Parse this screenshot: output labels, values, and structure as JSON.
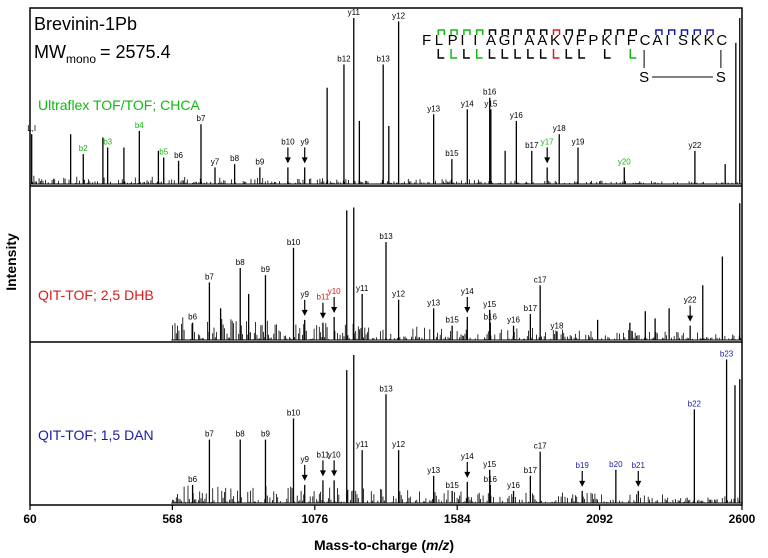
{
  "colors": {
    "green": "#12b812",
    "red": "#d91a1a",
    "blue": "#1a1aa8",
    "black": "#000000"
  },
  "chart_data": {
    "type": "spectrum",
    "title": "Brevinin-1Pb",
    "mw_label": "MW",
    "mw_sub": "mono",
    "mw_value": "= 2575.4",
    "xlabel": "Mass-to-charge (m/z)",
    "xlabel_main": "Mass-to-charge (",
    "xlabel_italic": "m/z",
    "xlabel_end": ")",
    "ylabel": "Intensity",
    "xlim": [
      60,
      2600
    ],
    "xticks": [
      "60",
      "568",
      "1076",
      "1584",
      "2092",
      "2600"
    ],
    "sequence": {
      "residues": [
        "F",
        "L",
        "P",
        "I",
        "I",
        "A",
        "G",
        "I",
        "A",
        "A",
        "K",
        "V",
        "F",
        "P",
        "K",
        "I",
        "F",
        "C",
        "A",
        "I",
        "S",
        "K",
        "K",
        "C"
      ],
      "top_marks": [
        {
          "pos": 2,
          "color": "green"
        },
        {
          "pos": 3,
          "color": "green"
        },
        {
          "pos": 4,
          "color": "green"
        },
        {
          "pos": 5,
          "color": "green"
        },
        {
          "pos": 6,
          "color": "black"
        },
        {
          "pos": 7,
          "color": "black"
        },
        {
          "pos": 8,
          "color": "black"
        },
        {
          "pos": 9,
          "color": "black"
        },
        {
          "pos": 10,
          "color": "black"
        },
        {
          "pos": 11,
          "color": "red"
        },
        {
          "pos": 12,
          "color": "black"
        },
        {
          "pos": 13,
          "color": "black"
        },
        {
          "pos": 15,
          "color": "black"
        },
        {
          "pos": 16,
          "color": "black"
        },
        {
          "pos": 17,
          "color": "black"
        },
        {
          "pos": 19,
          "color": "blue"
        },
        {
          "pos": 20,
          "color": "blue"
        },
        {
          "pos": 21,
          "color": "blue"
        },
        {
          "pos": 22,
          "color": "blue"
        },
        {
          "pos": 23,
          "color": "blue"
        }
      ],
      "bottom_marks": [
        {
          "pos": 2,
          "color": "black"
        },
        {
          "pos": 3,
          "color": "green"
        },
        {
          "pos": 4,
          "color": "black"
        },
        {
          "pos": 5,
          "color": "green"
        },
        {
          "pos": 6,
          "color": "black"
        },
        {
          "pos": 7,
          "color": "black"
        },
        {
          "pos": 8,
          "color": "black"
        },
        {
          "pos": 9,
          "color": "black"
        },
        {
          "pos": 10,
          "color": "black"
        },
        {
          "pos": 11,
          "color": "red"
        },
        {
          "pos": 12,
          "color": "black"
        },
        {
          "pos": 13,
          "color": "black"
        },
        {
          "pos": 15,
          "color": "black"
        },
        {
          "pos": 17,
          "color": "green"
        }
      ],
      "disulfide": "S—S",
      "s_label": "S"
    },
    "panels": [
      {
        "name": "Ultraflex TOF/TOF; CHCA",
        "color": "green",
        "noise_start": 60,
        "noise_level": 0.05,
        "peaks": [
          {
            "x": 66,
            "h": 0.3,
            "label": "L,I",
            "color": "black"
          },
          {
            "x": 205,
            "h": 0.3
          },
          {
            "x": 250,
            "h": 0.18,
            "label": "b2",
            "color": "green"
          },
          {
            "x": 320,
            "h": 0.28
          },
          {
            "x": 337,
            "h": 0.22,
            "label": "b3",
            "color": "green"
          },
          {
            "x": 395,
            "h": 0.22
          },
          {
            "x": 450,
            "h": 0.32,
            "label": "b4",
            "color": "green"
          },
          {
            "x": 518,
            "h": 0.2
          },
          {
            "x": 537,
            "h": 0.16,
            "label": "b5",
            "color": "green"
          },
          {
            "x": 590,
            "h": 0.14,
            "label": "b6",
            "color": "black"
          },
          {
            "x": 670,
            "h": 0.36,
            "label": "b7",
            "color": "black"
          },
          {
            "x": 720,
            "h": 0.1,
            "label": "y7",
            "color": "black"
          },
          {
            "x": 790,
            "h": 0.12,
            "label": "b8",
            "color": "black"
          },
          {
            "x": 880,
            "h": 0.1,
            "label": "b9",
            "color": "black"
          },
          {
            "x": 980,
            "h": 0.1,
            "label": "b10",
            "color": "black",
            "arrow": true
          },
          {
            "x": 1040,
            "h": 0.1,
            "label": "y9",
            "color": "black",
            "arrow": true
          },
          {
            "x": 1120,
            "h": 0.58
          },
          {
            "x": 1180,
            "h": 0.72,
            "label": "b12",
            "color": "black"
          },
          {
            "x": 1215,
            "h": 1.0,
            "label": "y11",
            "color": "black"
          },
          {
            "x": 1235,
            "h": 0.38
          },
          {
            "x": 1320,
            "h": 0.72,
            "label": "b13",
            "color": "black"
          },
          {
            "x": 1340,
            "h": 0.35
          },
          {
            "x": 1375,
            "h": 0.98,
            "label": "y12",
            "color": "black"
          },
          {
            "x": 1500,
            "h": 0.42,
            "label": "y13",
            "color": "black"
          },
          {
            "x": 1565,
            "h": 0.15,
            "label": "b15",
            "color": "black"
          },
          {
            "x": 1620,
            "h": 0.45,
            "label": "y14",
            "color": "black"
          },
          {
            "x": 1700,
            "h": 0.52,
            "label": "b16",
            "color": "black"
          },
          {
            "x": 1704,
            "h": 0.45,
            "label": "y15",
            "color": "black"
          },
          {
            "x": 1755,
            "h": 0.2
          },
          {
            "x": 1795,
            "h": 0.38,
            "label": "y16",
            "color": "black"
          },
          {
            "x": 1850,
            "h": 0.2,
            "label": "b17",
            "color": "black"
          },
          {
            "x": 1905,
            "h": 0.1,
            "label": "y17",
            "color": "green",
            "arrow": true
          },
          {
            "x": 1948,
            "h": 0.3,
            "label": "y18",
            "color": "black"
          },
          {
            "x": 2015,
            "h": 0.22,
            "label": "y19",
            "color": "black"
          },
          {
            "x": 2180,
            "h": 0.1,
            "label": "y20",
            "color": "green"
          },
          {
            "x": 2432,
            "h": 0.2,
            "label": "y22",
            "color": "black"
          },
          {
            "x": 2540,
            "h": 0.12
          },
          {
            "x": 2578,
            "h": 0.85
          },
          {
            "x": 2592,
            "h": 1.0
          }
        ]
      },
      {
        "name": "QIT-TOF; 2,5 DHB",
        "color": "red",
        "noise_start": 568,
        "noise_level": 0.16,
        "peaks": [
          {
            "x": 640,
            "h": 0.12,
            "label": "b6",
            "color": "black"
          },
          {
            "x": 700,
            "h": 0.4,
            "label": "b7",
            "color": "black"
          },
          {
            "x": 740,
            "h": 0.22
          },
          {
            "x": 810,
            "h": 0.5,
            "label": "b8",
            "color": "black"
          },
          {
            "x": 840,
            "h": 0.32
          },
          {
            "x": 900,
            "h": 0.45,
            "label": "b9",
            "color": "black"
          },
          {
            "x": 1000,
            "h": 0.64,
            "label": "b10",
            "color": "black"
          },
          {
            "x": 1040,
            "h": 0.14,
            "label": "y9",
            "color": "black",
            "arrow": true
          },
          {
            "x": 1105,
            "h": 0.12,
            "label": "b11",
            "color": "red",
            "arrow": true
          },
          {
            "x": 1145,
            "h": 0.16,
            "label": "y10",
            "color": "red",
            "arrow": true
          },
          {
            "x": 1190,
            "h": 0.9
          },
          {
            "x": 1215,
            "h": 0.92
          },
          {
            "x": 1245,
            "h": 0.32,
            "label": "y11",
            "color": "black"
          },
          {
            "x": 1375,
            "h": 0.28,
            "label": "y12",
            "color": "black"
          },
          {
            "x": 1330,
            "h": 0.68,
            "label": "b13",
            "color": "black"
          },
          {
            "x": 1500,
            "h": 0.22,
            "label": "y13",
            "color": "black"
          },
          {
            "x": 1566,
            "h": 0.1,
            "label": "b15",
            "color": "black"
          },
          {
            "x": 1620,
            "h": 0.16,
            "label": "y14",
            "color": "black",
            "arrow": true
          },
          {
            "x": 1700,
            "h": 0.21,
            "label": "y15",
            "color": "black"
          },
          {
            "x": 1702,
            "h": 0.12,
            "label": "b16",
            "color": "black"
          },
          {
            "x": 1785,
            "h": 0.1,
            "label": "y16",
            "color": "black"
          },
          {
            "x": 1845,
            "h": 0.18,
            "label": "b17",
            "color": "black"
          },
          {
            "x": 1880,
            "h": 0.38,
            "label": "c17",
            "color": "black"
          },
          {
            "x": 1940,
            "h": 0.06,
            "label": "y18",
            "color": "black"
          },
          {
            "x": 2085,
            "h": 0.14
          },
          {
            "x": 2200,
            "h": 0.12
          },
          {
            "x": 2255,
            "h": 0.2
          },
          {
            "x": 2290,
            "h": 0.15
          },
          {
            "x": 2340,
            "h": 0.22
          },
          {
            "x": 2415,
            "h": 0.1,
            "label": "y22",
            "color": "black",
            "arrow": true
          },
          {
            "x": 2460,
            "h": 0.38
          },
          {
            "x": 2530,
            "h": 0.58
          },
          {
            "x": 2592,
            "h": 0.95
          }
        ]
      },
      {
        "name": "QIT-TOF; 1,5 DAN",
        "color": "blue",
        "noise_start": 568,
        "noise_level": 0.14,
        "peaks": [
          {
            "x": 640,
            "h": 0.12,
            "label": "b6",
            "color": "black"
          },
          {
            "x": 700,
            "h": 0.42,
            "label": "b7",
            "color": "black"
          },
          {
            "x": 810,
            "h": 0.42,
            "label": "b8",
            "color": "black"
          },
          {
            "x": 900,
            "h": 0.42,
            "label": "b9",
            "color": "black"
          },
          {
            "x": 1000,
            "h": 0.56,
            "label": "b10",
            "color": "black"
          },
          {
            "x": 1040,
            "h": 0.12,
            "label": "y9",
            "color": "black",
            "arrow": true
          },
          {
            "x": 1105,
            "h": 0.15,
            "label": "b11",
            "color": "black",
            "arrow": true
          },
          {
            "x": 1145,
            "h": 0.15,
            "label": "y10",
            "color": "black",
            "arrow": true
          },
          {
            "x": 1190,
            "h": 0.88
          },
          {
            "x": 1215,
            "h": 0.98
          },
          {
            "x": 1245,
            "h": 0.35,
            "label": "y11",
            "color": "black"
          },
          {
            "x": 1330,
            "h": 0.72,
            "label": "b13",
            "color": "black"
          },
          {
            "x": 1375,
            "h": 0.35,
            "label": "y12",
            "color": "black"
          },
          {
            "x": 1500,
            "h": 0.18,
            "label": "y13",
            "color": "black"
          },
          {
            "x": 1566,
            "h": 0.08,
            "label": "b15",
            "color": "black"
          },
          {
            "x": 1620,
            "h": 0.14,
            "label": "y14",
            "color": "black",
            "arrow": true
          },
          {
            "x": 1700,
            "h": 0.22,
            "label": "y15",
            "color": "black"
          },
          {
            "x": 1702,
            "h": 0.12,
            "label": "b16",
            "color": "black"
          },
          {
            "x": 1785,
            "h": 0.08,
            "label": "y16",
            "color": "black"
          },
          {
            "x": 1845,
            "h": 0.18,
            "label": "b17",
            "color": "black"
          },
          {
            "x": 1880,
            "h": 0.34,
            "label": "c17",
            "color": "black"
          },
          {
            "x": 2030,
            "h": 0.08,
            "label": "b19",
            "color": "blue",
            "arrow": true
          },
          {
            "x": 2150,
            "h": 0.22,
            "label": "b20",
            "color": "blue"
          },
          {
            "x": 2230,
            "h": 0.08,
            "label": "b21",
            "color": "blue",
            "arrow": true
          },
          {
            "x": 2430,
            "h": 0.62,
            "label": "b22",
            "color": "blue"
          },
          {
            "x": 2545,
            "h": 0.95,
            "label": "b23",
            "color": "blue"
          },
          {
            "x": 2575,
            "h": 0.78
          },
          {
            "x": 2592,
            "h": 0.82
          }
        ]
      }
    ]
  }
}
